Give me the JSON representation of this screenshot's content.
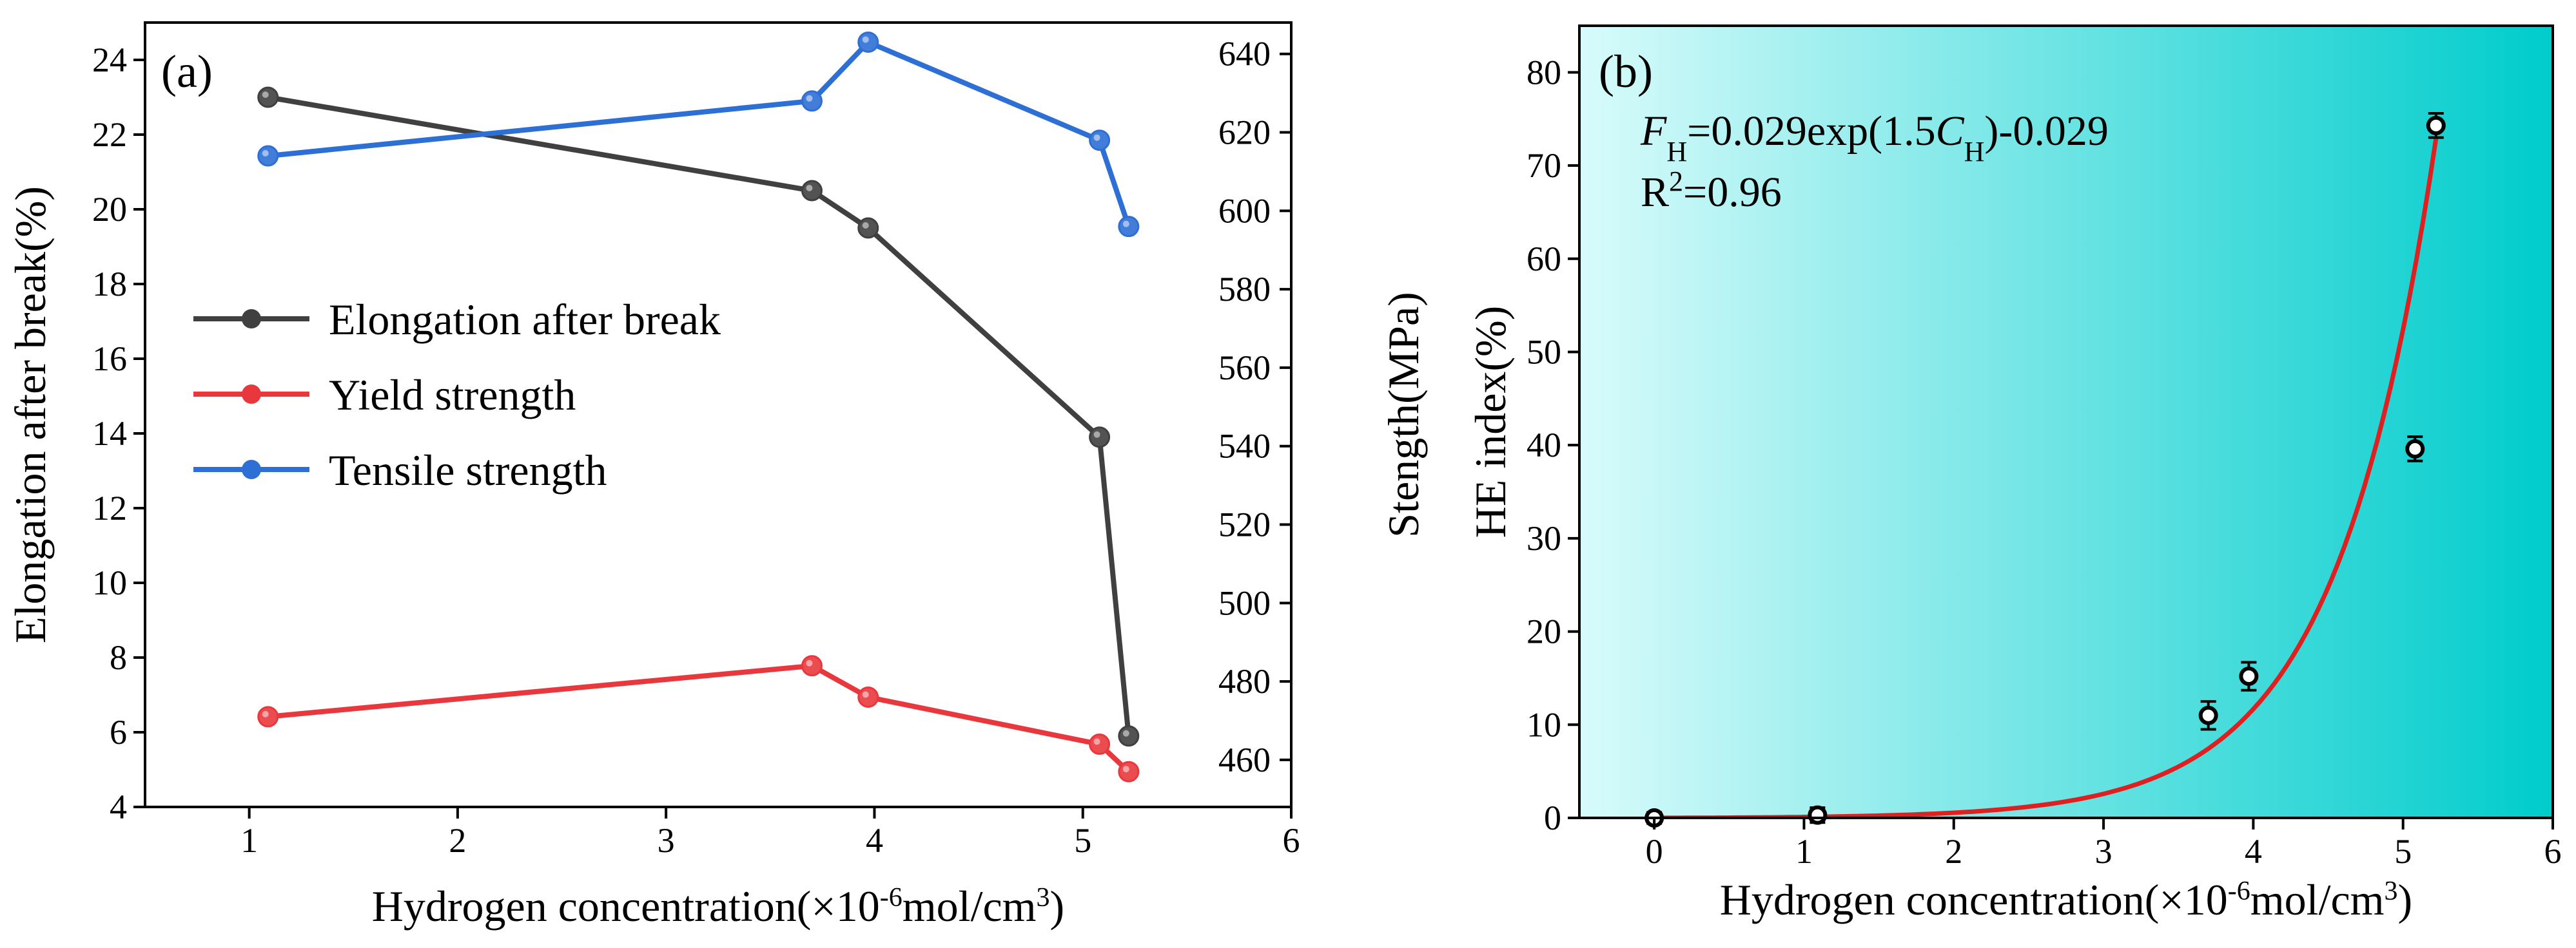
{
  "chart_data": [
    {
      "panel": "(a)",
      "type": "line",
      "xlabel": "Hydrogen concentration(×10⁻⁶mol/cm³)",
      "xlabel_parts": {
        "main": "Hydrogen concentration(×10",
        "exp1": "-6",
        "mid": "mol/cm",
        "exp2": "3",
        "end": ")"
      },
      "ylabel_left": "Elongation after break(%)",
      "ylabel_right": "Stength(MPa)",
      "xlim": [
        0.5,
        6
      ],
      "xticks": [
        1,
        2,
        3,
        4,
        5,
        6
      ],
      "ylim_left": [
        4,
        25
      ],
      "yticks_left": [
        4,
        6,
        8,
        10,
        12,
        14,
        16,
        18,
        20,
        22,
        24
      ],
      "ylim_right": [
        448,
        648
      ],
      "yticks_right": [
        460,
        480,
        500,
        520,
        540,
        560,
        580,
        600,
        620,
        640
      ],
      "series": [
        {
          "name": "Elongation after break",
          "axis": "left",
          "color": "#404040",
          "x": [
            1.09,
            3.7,
            3.97,
            5.08,
            5.22
          ],
          "y": [
            23.0,
            20.5,
            19.5,
            13.9,
            5.9
          ]
        },
        {
          "name": "Yield strength",
          "axis": "right",
          "color": "#e8383d",
          "x": [
            1.09,
            3.7,
            3.97,
            5.08,
            5.22
          ],
          "y": [
            471,
            484,
            476,
            464,
            457
          ]
        },
        {
          "name": "Tensile strength",
          "axis": "right",
          "color": "#2e6fd6",
          "x": [
            1.09,
            3.7,
            3.97,
            5.08,
            5.22
          ],
          "y": [
            614,
            628,
            643,
            618,
            596
          ]
        }
      ]
    },
    {
      "panel": "(b)",
      "type": "scatter",
      "xlabel": "Hydrogen concentration(×10⁻⁶mol/cm³)",
      "xlabel_parts": {
        "main": "Hydrogen concentration(×10",
        "exp1": "-6",
        "mid": "mol/cm",
        "exp2": "3",
        "end": ")"
      },
      "ylabel": "HE index(%)",
      "xlim": [
        -0.5,
        6
      ],
      "xticks": [
        0,
        1,
        2,
        3,
        4,
        5,
        6
      ],
      "ylim": [
        0,
        85
      ],
      "yticks": [
        0,
        10,
        20,
        30,
        40,
        50,
        60,
        70,
        80
      ],
      "points": {
        "x": [
          0.0,
          1.09,
          3.7,
          3.97,
          5.08,
          5.22
        ],
        "y": [
          0.0,
          0.3,
          11.0,
          15.2,
          39.6,
          74.3
        ],
        "err": [
          0.6,
          0.8,
          1.5,
          1.5,
          1.3,
          1.3
        ]
      },
      "fit": {
        "a": 0.029,
        "b": 1.5,
        "c": -0.029,
        "x_range": [
          0,
          5.22
        ],
        "color": "#e02020"
      },
      "equation": {
        "lhs_var": "F",
        "lhs_sub": "H",
        "middle": "=0.029exp(1.5",
        "var": "C",
        "var_sub": "H",
        "end": ")-0.029"
      },
      "r2": {
        "label": "R",
        "sup": "2",
        "value": "=0.96"
      },
      "background_gradient": [
        "#d8fbfb",
        "#00cccc"
      ]
    }
  ]
}
